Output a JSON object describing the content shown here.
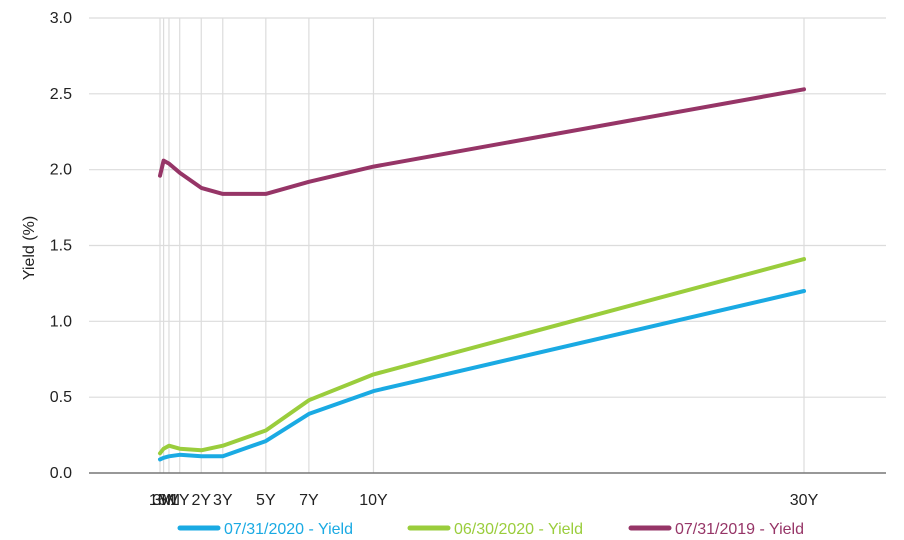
{
  "chart_data": {
    "type": "line",
    "title": "",
    "xlabel": "",
    "ylabel": "Yield (%)",
    "x": [
      "1M",
      "3M",
      "6M",
      "1Y",
      "2Y",
      "3Y",
      "5Y",
      "7Y",
      "10Y",
      "30Y"
    ],
    "x_maturity_years": [
      0.0833,
      0.25,
      0.5,
      1,
      2,
      3,
      5,
      7,
      10,
      30
    ],
    "ylim": [
      0,
      3.0
    ],
    "yticks": [
      "0.0",
      "0.5",
      "1.0",
      "1.5",
      "2.0",
      "2.5",
      "3.0"
    ],
    "grid": true,
    "legend_position": "bottom",
    "series": [
      {
        "name": "07/31/2020 - Yield",
        "color": "#1aaae3",
        "values": [
          0.09,
          0.1,
          0.11,
          0.12,
          0.11,
          0.11,
          0.21,
          0.39,
          0.54,
          1.2
        ]
      },
      {
        "name": "06/30/2020 - Yield",
        "color": "#9acd3c",
        "values": [
          0.13,
          0.16,
          0.18,
          0.16,
          0.15,
          0.18,
          0.28,
          0.48,
          0.65,
          1.41
        ]
      },
      {
        "name": "07/31/2019 - Yield",
        "color": "#963567",
        "values": [
          1.96,
          2.06,
          2.04,
          1.98,
          1.88,
          1.84,
          1.84,
          1.92,
          2.02,
          2.53
        ]
      }
    ]
  }
}
